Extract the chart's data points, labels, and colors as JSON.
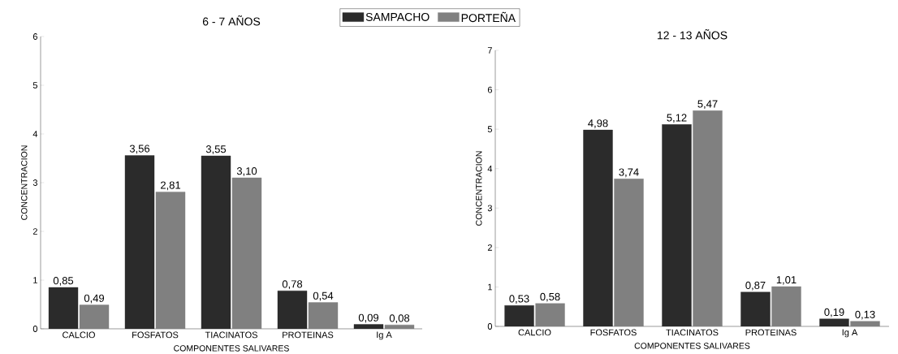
{
  "chart_data": [
    {
      "type": "bar",
      "title": "6 - 7 AÑOS",
      "xlabel": "COMPONENTES SALIVARES",
      "ylabel": "CONCENTRACION",
      "categories": [
        "CALCIO",
        "FOSFATOS",
        "TIACINATOS",
        "PROTEINAS",
        "Ig A"
      ],
      "series": [
        {
          "name": "SAMPACHO",
          "color": "#2b2b2b",
          "values": [
            0.85,
            3.56,
            3.55,
            0.78,
            0.09
          ],
          "value_labels": [
            "0,85",
            "3,56",
            "3,55",
            "0,78",
            "0,09"
          ]
        },
        {
          "name": "PORTEÑA",
          "color": "#808080",
          "values": [
            0.49,
            2.81,
            3.1,
            0.54,
            0.08
          ],
          "value_labels": [
            "0,49",
            "2,81",
            "3,10",
            "0,54",
            "0,08"
          ]
        }
      ],
      "ylim": [
        0,
        6
      ],
      "yticks": [
        0,
        1,
        2,
        3,
        4,
        5,
        6
      ],
      "grid": false,
      "legend": "top right"
    },
    {
      "type": "bar",
      "title": "12 - 13 AÑOS",
      "xlabel": "COMPONENTES SALIVARES",
      "ylabel": "CONCENTRACION",
      "categories": [
        "CALCIO",
        "FOSFATOS",
        "TIACINATOS",
        "PROTEINAS",
        "Ig A"
      ],
      "series": [
        {
          "color": "#2b2b2b",
          "values": [
            0.53,
            4.98,
            5.12,
            0.87,
            0.19
          ],
          "value_labels": [
            "0,53",
            "4,98",
            "5,12",
            "0,87",
            "0,19"
          ]
        },
        {
          "color": "#808080",
          "values": [
            0.58,
            3.74,
            5.47,
            1.01,
            0.13
          ],
          "value_labels": [
            "0,58",
            "3,74",
            "5,47",
            "1,01",
            "0,13"
          ]
        }
      ],
      "ylim": [
        0,
        7
      ],
      "yticks": [
        0,
        1,
        2,
        3,
        4,
        5,
        6,
        7
      ],
      "grid": false,
      "legend": false
    }
  ]
}
